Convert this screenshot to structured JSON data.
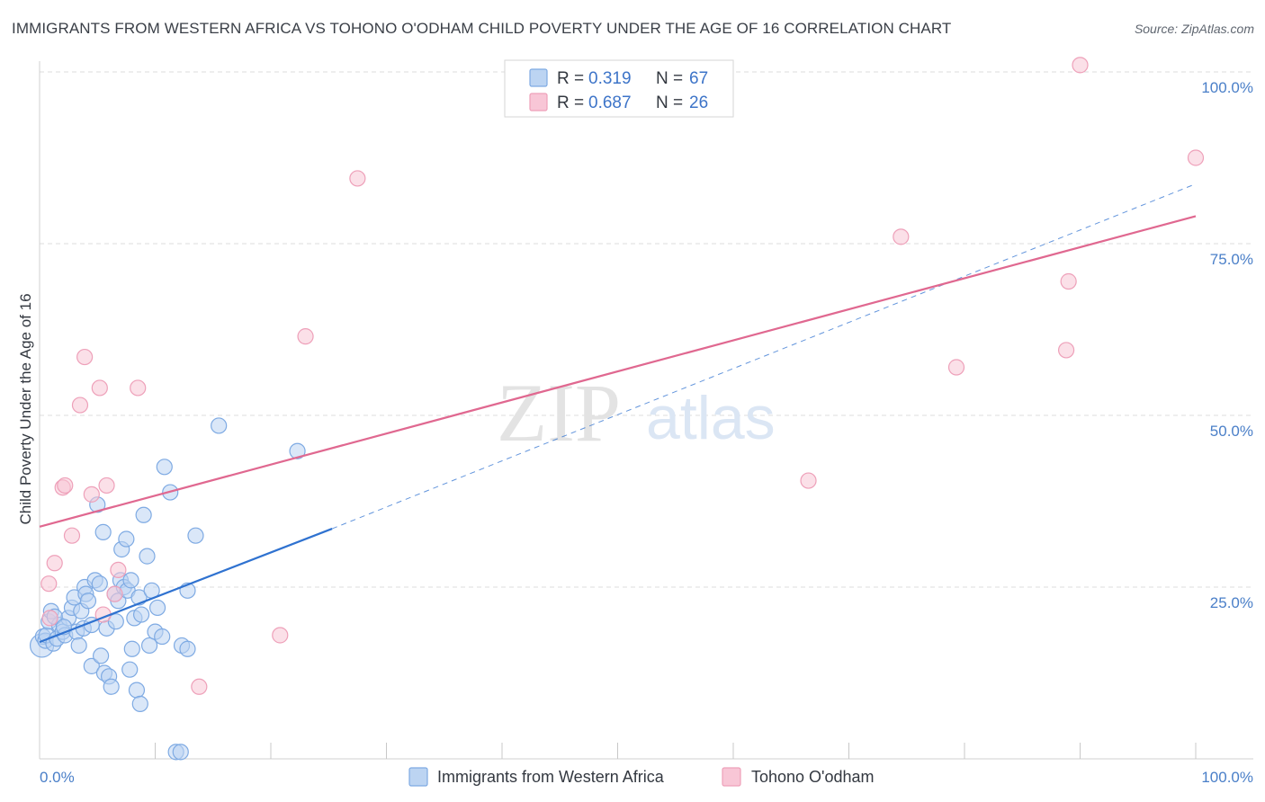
{
  "title": "IMMIGRANTS FROM WESTERN AFRICA VS TOHONO O'ODHAM CHILD POVERTY UNDER THE AGE OF 16 CORRELATION CHART",
  "source": "Source: ZipAtlas.com",
  "watermark": {
    "zip": "ZIP",
    "atlas": "atlas"
  },
  "legend": {
    "r_label": "R =",
    "n_label": "N =",
    "rows": [
      {
        "r": "0.319",
        "n": "67"
      },
      {
        "r": "0.687",
        "n": "26"
      }
    ]
  },
  "bottom_legend": [
    "Immigrants from Western Africa",
    "Tohono O'odham"
  ],
  "colors": {
    "blue_fill": "#bcd4f2",
    "blue_stroke": "#7eaae3",
    "blue_line": "#2f72d0",
    "pink_fill": "#f8c6d6",
    "pink_stroke": "#eea0b9",
    "pink_line": "#e06890",
    "grid": "#dddddd",
    "axis_label": "#4a7fc8"
  },
  "chart_data": {
    "type": "scatter",
    "title": "IMMIGRANTS FROM WESTERN AFRICA VS TOHONO O'ODHAM CHILD POVERTY UNDER THE AGE OF 16 CORRELATION CHART",
    "xlabel": "",
    "ylabel": "Child Poverty Under the Age of 16",
    "xlim": [
      0,
      100
    ],
    "ylim": [
      0,
      100
    ],
    "x_tick_labels": [
      "0.0%",
      "100.0%"
    ],
    "y_ticks": [
      {
        "value": 25,
        "label": "25.0%"
      },
      {
        "value": 50,
        "label": "50.0%"
      },
      {
        "value": 75,
        "label": "75.0%"
      },
      {
        "value": 100,
        "label": "100.0%"
      }
    ],
    "series": [
      {
        "name": "Immigrants from Western Africa",
        "r": 0.319,
        "n": 67,
        "trend_solid": {
          "x": [
            0,
            25.3
          ],
          "y": [
            17.0,
            33.5
          ]
        },
        "trend_dashed": {
          "x": [
            25.3,
            100
          ],
          "y": [
            33.5,
            83.7
          ]
        },
        "points": [
          {
            "x": 0.2,
            "y": 16.5,
            "big": true
          },
          {
            "x": 0.3,
            "y": 17.8
          },
          {
            "x": 0.5,
            "y": 17.2
          },
          {
            "x": 0.6,
            "y": 18.0
          },
          {
            "x": 0.8,
            "y": 20.0
          },
          {
            "x": 1.0,
            "y": 21.5
          },
          {
            "x": 1.2,
            "y": 16.8
          },
          {
            "x": 1.5,
            "y": 17.5
          },
          {
            "x": 1.7,
            "y": 19.5
          },
          {
            "x": 2.0,
            "y": 18.5
          },
          {
            "x": 2.2,
            "y": 18.0
          },
          {
            "x": 2.5,
            "y": 20.5
          },
          {
            "x": 2.8,
            "y": 22.0
          },
          {
            "x": 3.0,
            "y": 23.5
          },
          {
            "x": 3.2,
            "y": 18.5
          },
          {
            "x": 3.4,
            "y": 16.5
          },
          {
            "x": 3.6,
            "y": 21.5
          },
          {
            "x": 3.8,
            "y": 19.0
          },
          {
            "x": 3.9,
            "y": 25.0
          },
          {
            "x": 4.0,
            "y": 24.0
          },
          {
            "x": 4.2,
            "y": 23.0
          },
          {
            "x": 4.5,
            "y": 19.5
          },
          {
            "x": 4.5,
            "y": 13.5
          },
          {
            "x": 4.8,
            "y": 26.0
          },
          {
            "x": 5.0,
            "y": 37.0
          },
          {
            "x": 5.2,
            "y": 25.5
          },
          {
            "x": 5.3,
            "y": 15.0
          },
          {
            "x": 5.5,
            "y": 33.0
          },
          {
            "x": 5.6,
            "y": 12.5
          },
          {
            "x": 5.8,
            "y": 19.0
          },
          {
            "x": 6.0,
            "y": 12.0
          },
          {
            "x": 6.2,
            "y": 10.5
          },
          {
            "x": 6.5,
            "y": 24.0
          },
          {
            "x": 6.6,
            "y": 20.0
          },
          {
            "x": 6.8,
            "y": 23.0
          },
          {
            "x": 7.0,
            "y": 26.0
          },
          {
            "x": 7.1,
            "y": 30.5
          },
          {
            "x": 7.3,
            "y": 25.0
          },
          {
            "x": 7.5,
            "y": 32.0
          },
          {
            "x": 7.6,
            "y": 24.5
          },
          {
            "x": 7.8,
            "y": 13.0
          },
          {
            "x": 7.9,
            "y": 26.0
          },
          {
            "x": 8.0,
            "y": 16.0
          },
          {
            "x": 8.2,
            "y": 20.5
          },
          {
            "x": 8.4,
            "y": 10.0
          },
          {
            "x": 8.6,
            "y": 23.5
          },
          {
            "x": 8.7,
            "y": 8.0
          },
          {
            "x": 8.8,
            "y": 21.0
          },
          {
            "x": 9.0,
            "y": 35.5
          },
          {
            "x": 9.3,
            "y": 29.5
          },
          {
            "x": 9.5,
            "y": 16.5
          },
          {
            "x": 9.7,
            "y": 24.5
          },
          {
            "x": 10.0,
            "y": 18.5
          },
          {
            "x": 10.2,
            "y": 22.0
          },
          {
            "x": 10.6,
            "y": 17.8
          },
          {
            "x": 10.8,
            "y": 42.5
          },
          {
            "x": 11.3,
            "y": 38.8
          },
          {
            "x": 11.8,
            "y": 1.0
          },
          {
            "x": 12.2,
            "y": 1.0
          },
          {
            "x": 12.3,
            "y": 16.5
          },
          {
            "x": 12.8,
            "y": 16.0
          },
          {
            "x": 12.8,
            "y": 24.5
          },
          {
            "x": 13.5,
            "y": 32.5
          },
          {
            "x": 15.5,
            "y": 48.5
          },
          {
            "x": 22.3,
            "y": 44.8
          },
          {
            "x": 1.3,
            "y": 20.7
          },
          {
            "x": 2.1,
            "y": 19.2
          }
        ]
      },
      {
        "name": "Tohono O'odham",
        "r": 0.687,
        "n": 26,
        "trend_solid": {
          "x": [
            0,
            100
          ],
          "y": [
            33.8,
            79.0
          ]
        },
        "points": [
          {
            "x": 0.8,
            "y": 25.5
          },
          {
            "x": 0.9,
            "y": 20.5
          },
          {
            "x": 1.3,
            "y": 28.5
          },
          {
            "x": 2.0,
            "y": 39.5
          },
          {
            "x": 2.2,
            "y": 39.8
          },
          {
            "x": 2.8,
            "y": 32.5
          },
          {
            "x": 3.5,
            "y": 51.5
          },
          {
            "x": 3.9,
            "y": 58.5
          },
          {
            "x": 4.5,
            "y": 38.5
          },
          {
            "x": 5.2,
            "y": 54.0
          },
          {
            "x": 5.5,
            "y": 21.0
          },
          {
            "x": 5.8,
            "y": 39.8
          },
          {
            "x": 6.5,
            "y": 24.0
          },
          {
            "x": 6.8,
            "y": 27.5
          },
          {
            "x": 8.5,
            "y": 54.0
          },
          {
            "x": 13.8,
            "y": 10.5
          },
          {
            "x": 20.8,
            "y": 18.0
          },
          {
            "x": 23.0,
            "y": 61.5
          },
          {
            "x": 27.5,
            "y": 84.5
          },
          {
            "x": 66.5,
            "y": 40.5
          },
          {
            "x": 74.5,
            "y": 76.0
          },
          {
            "x": 79.3,
            "y": 57.0
          },
          {
            "x": 88.8,
            "y": 59.5
          },
          {
            "x": 89.0,
            "y": 69.5
          },
          {
            "x": 90.0,
            "y": 101.0
          },
          {
            "x": 100.0,
            "y": 87.5
          }
        ]
      }
    ]
  }
}
